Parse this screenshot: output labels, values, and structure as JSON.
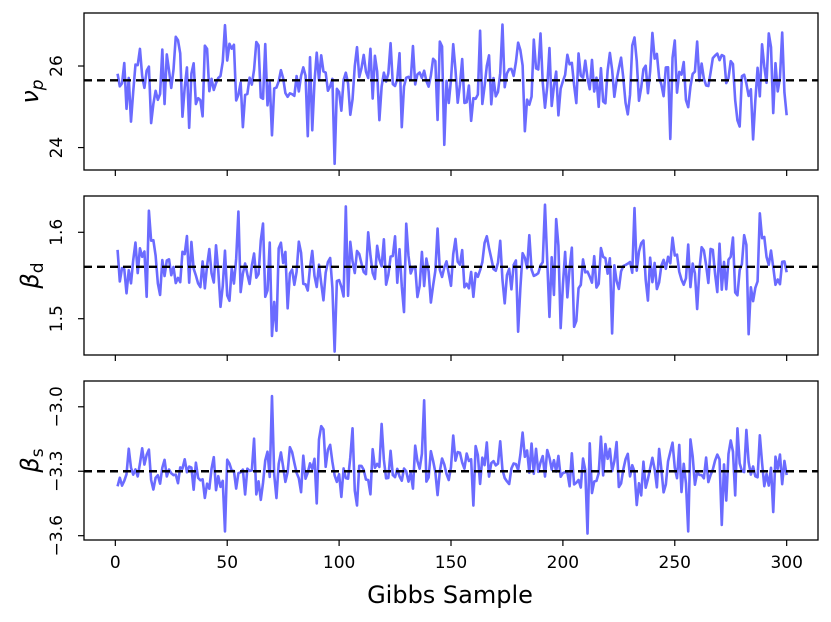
{
  "chart_data": {
    "type": "line",
    "xlabel": "Gibbs Sample",
    "x_range": [
      1,
      300
    ],
    "xlim": [
      -14,
      314
    ],
    "xticks": [
      0,
      50,
      100,
      150,
      200,
      250,
      300
    ],
    "xtick_labels": [
      "0",
      "50",
      "100",
      "150",
      "200",
      "250",
      "300"
    ],
    "line_color": "#6b6bff",
    "reference_line_color": "#000000",
    "panels": [
      {
        "ylabel_base": "ν",
        "ylabel_sub": "p",
        "ylim": [
          23.45,
          27.3
        ],
        "yticks": [
          24,
          26
        ],
        "ytick_labels": [
          "24",
          "26"
        ],
        "reference": 25.65,
        "center": 25.7,
        "spread": 0.5,
        "extremes": [
          [
            49,
            27.0
          ],
          [
            98,
            27.1
          ],
          [
            98,
            23.6
          ],
          [
            190,
            26.8
          ],
          [
            232,
            26.7
          ],
          [
            292,
            26.8
          ],
          [
            70,
            24.3
          ],
          [
            57,
            24.5
          ],
          [
            128,
            24.5
          ],
          [
            183,
            24.4
          ],
          [
            285,
            24.2
          ],
          [
            16,
            24.6
          ],
          [
            40,
            26.5
          ],
          [
            260,
            26.6
          ]
        ]
      },
      {
        "ylabel_base": "β",
        "ylabel_sub": "d",
        "ylim": [
          1.458,
          1.642
        ],
        "yticks": [
          1.5,
          1.6
        ],
        "ytick_labels": [
          "1.5",
          "1.6"
        ],
        "reference": 1.56,
        "center": 1.558,
        "spread": 0.022,
        "extremes": [
          [
            15,
            1.625
          ],
          [
            55,
            1.624
          ],
          [
            98,
            1.462
          ],
          [
            103,
            1.63
          ],
          [
            192,
            1.632
          ],
          [
            232,
            1.628
          ],
          [
            288,
            1.622
          ],
          [
            70,
            1.48
          ],
          [
            180,
            1.485
          ],
          [
            222,
            1.483
          ],
          [
            283,
            1.482
          ],
          [
            45,
            1.585
          ],
          [
            130,
            1.61
          ]
        ]
      },
      {
        "ylabel_base": "β",
        "ylabel_sub": "s",
        "ylim": [
          -3.62,
          -2.88
        ],
        "yticks": [
          -3.6,
          -3.3,
          -3.0
        ],
        "ytick_labels": [
          "−3.6",
          "−3.3",
          "−3.0"
        ],
        "reference": -3.3,
        "center": -3.29,
        "spread": 0.07,
        "extremes": [
          [
            70,
            -2.95
          ],
          [
            138,
            -2.97
          ],
          [
            49,
            -3.58
          ],
          [
            211,
            -3.59
          ],
          [
            256,
            -3.58
          ],
          [
            271,
            -3.55
          ],
          [
            294,
            -3.49
          ],
          [
            119,
            -3.08
          ],
          [
            106,
            -3.1
          ],
          [
            182,
            -3.12
          ],
          [
            278,
            -3.1
          ],
          [
            90,
            -3.45
          ],
          [
            160,
            -3.46
          ]
        ]
      }
    ]
  }
}
